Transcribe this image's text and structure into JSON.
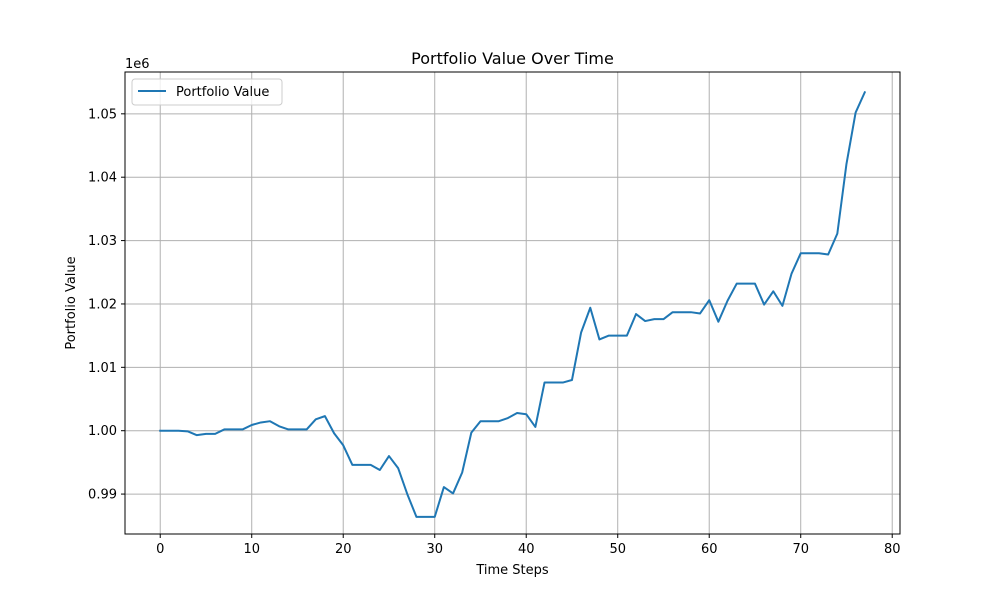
{
  "chart_data": {
    "type": "line",
    "title": "Portfolio Value Over Time",
    "xlabel": "Time Steps",
    "ylabel": "Portfolio Value",
    "y_offset_text": "1e6",
    "xlim": [
      -3.85,
      80.85
    ],
    "ylim": [
      983700,
      1056600
    ],
    "x_ticks": [
      0,
      10,
      20,
      30,
      40,
      50,
      60,
      70,
      80
    ],
    "x_tick_labels": [
      "0",
      "10",
      "20",
      "30",
      "40",
      "50",
      "60",
      "70",
      "80"
    ],
    "y_ticks": [
      990000,
      1000000,
      1010000,
      1020000,
      1030000,
      1040000,
      1050000
    ],
    "y_tick_labels": [
      "0.99",
      "1.00",
      "1.01",
      "1.02",
      "1.03",
      "1.04",
      "1.05"
    ],
    "grid": true,
    "legend_position": "upper-left",
    "color": "#1f77b4",
    "series": [
      {
        "name": "Portfolio Value",
        "x": [
          0,
          1,
          2,
          3,
          4,
          5,
          6,
          7,
          8,
          9,
          10,
          11,
          12,
          13,
          14,
          15,
          16,
          17,
          18,
          19,
          20,
          21,
          22,
          23,
          24,
          25,
          26,
          27,
          28,
          29,
          30,
          31,
          32,
          33,
          34,
          35,
          36,
          37,
          38,
          39,
          40,
          41,
          42,
          43,
          44,
          45,
          46,
          47,
          48,
          49,
          50,
          51,
          52,
          53,
          54,
          55,
          56,
          57,
          58,
          59,
          60,
          61,
          62,
          63,
          64,
          65,
          66,
          67,
          68,
          69,
          70,
          71,
          72,
          73,
          74,
          75,
          76,
          77
        ],
        "values": [
          1000000,
          1000000,
          1000000,
          999900,
          999300,
          999500,
          999500,
          1000200,
          1000200,
          1000200,
          1000900,
          1001300,
          1001500,
          1000700,
          1000200,
          1000200,
          1000200,
          1001800,
          1002300,
          999600,
          997700,
          994600,
          994600,
          994600,
          993800,
          996000,
          994100,
          990000,
          986400,
          986400,
          986400,
          991100,
          990100,
          993400,
          999700,
          1001500,
          1001500,
          1001500,
          1002000,
          1002800,
          1002600,
          1000600,
          1007600,
          1007600,
          1007600,
          1008000,
          1015500,
          1019400,
          1014400,
          1015000,
          1015000,
          1015000,
          1018400,
          1017300,
          1017600,
          1017600,
          1018700,
          1018700,
          1018700,
          1018500,
          1020600,
          1017200,
          1020500,
          1023200,
          1023200,
          1023200,
          1019900,
          1022000,
          1019700,
          1024800,
          1028000,
          1028000,
          1028000,
          1027800,
          1031100,
          1042100,
          1050200,
          1053400
        ]
      }
    ]
  }
}
